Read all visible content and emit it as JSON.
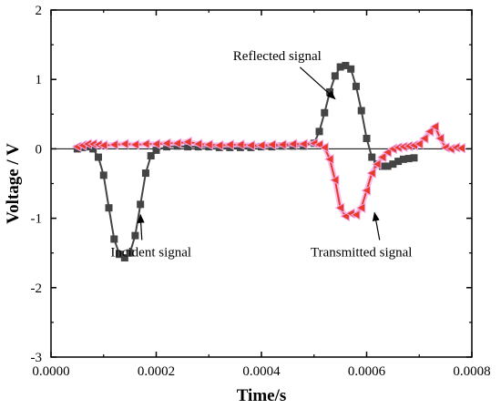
{
  "chart_data": {
    "type": "line",
    "xlabel": "Time/s",
    "ylabel": "Voltage / V",
    "xlim": [
      0.0,
      0.0008
    ],
    "ylim": [
      -3,
      2
    ],
    "x_ticks": [
      "0.0000",
      "0.0002",
      "0.0004",
      "0.0006",
      "0.0008"
    ],
    "y_ticks": [
      "-3",
      "-2",
      "-1",
      "0",
      "1",
      "2"
    ],
    "grid": false,
    "zero_line": true,
    "colors": {
      "incident_reflected": "#444444",
      "transmitted": "#e8392b",
      "transmitted_glow": "#f2a6e6"
    },
    "series": [
      {
        "marker": "square",
        "x": [
          5e-05,
          6e-05,
          7e-05,
          8e-05,
          9e-05,
          0.0001,
          0.00011,
          0.00012,
          0.00013,
          0.00014,
          0.00015,
          0.00016,
          0.00017,
          0.00018,
          0.00019,
          0.0002,
          0.00022,
          0.00024,
          0.00026,
          0.00028,
          0.0003,
          0.00032,
          0.00034,
          0.00036,
          0.00038,
          0.0004,
          0.00042,
          0.00044,
          0.00046,
          0.00048,
          0.0005,
          0.00051,
          0.00052,
          0.00053,
          0.00054,
          0.00055,
          0.00056,
          0.00057,
          0.00058,
          0.00059,
          0.0006,
          0.00061,
          0.00062,
          0.00063,
          0.00064,
          0.00065,
          0.00066,
          0.00067,
          0.00068,
          0.00069
        ],
        "y": [
          0.0,
          0.02,
          0.03,
          0.0,
          -0.12,
          -0.38,
          -0.85,
          -1.3,
          -1.52,
          -1.57,
          -1.5,
          -1.25,
          -0.8,
          -0.35,
          -0.1,
          -0.02,
          0.03,
          0.04,
          0.03,
          0.03,
          0.03,
          0.02,
          0.02,
          0.02,
          0.02,
          0.03,
          0.03,
          0.04,
          0.04,
          0.04,
          0.08,
          0.25,
          0.52,
          0.82,
          1.05,
          1.18,
          1.2,
          1.15,
          0.9,
          0.55,
          0.15,
          -0.12,
          -0.22,
          -0.25,
          -0.25,
          -0.22,
          -0.18,
          -0.15,
          -0.14,
          -0.13
        ]
      },
      {
        "marker": "triangle-left",
        "x": [
          5e-05,
          6e-05,
          7e-05,
          8e-05,
          9e-05,
          0.0001,
          0.00012,
          0.00014,
          0.00016,
          0.00018,
          0.0002,
          0.00022,
          0.00024,
          0.00026,
          0.00028,
          0.0003,
          0.00032,
          0.00034,
          0.00036,
          0.00038,
          0.0004,
          0.00042,
          0.00044,
          0.00046,
          0.00048,
          0.0005,
          0.00051,
          0.00052,
          0.00053,
          0.00054,
          0.00055,
          0.00056,
          0.00057,
          0.00058,
          0.00059,
          0.0006,
          0.00061,
          0.00062,
          0.00063,
          0.00064,
          0.00065,
          0.00066,
          0.00067,
          0.00068,
          0.00069,
          0.0007,
          0.00071,
          0.00072,
          0.00073,
          0.00074,
          0.00075,
          0.00076,
          0.00077,
          0.00078
        ],
        "y": [
          0.03,
          0.05,
          0.07,
          0.07,
          0.06,
          0.05,
          0.06,
          0.07,
          0.06,
          0.07,
          0.07,
          0.08,
          0.08,
          0.1,
          0.07,
          0.06,
          0.05,
          0.06,
          0.06,
          0.05,
          0.05,
          0.06,
          0.06,
          0.07,
          0.07,
          0.08,
          0.06,
          0.02,
          -0.15,
          -0.45,
          -0.85,
          -0.97,
          -0.93,
          -0.95,
          -0.85,
          -0.6,
          -0.35,
          -0.22,
          -0.12,
          -0.05,
          0.0,
          0.02,
          0.03,
          0.04,
          0.05,
          0.07,
          0.15,
          0.25,
          0.32,
          0.15,
          0.02,
          0.0,
          0.02,
          0.01
        ]
      }
    ],
    "annotations": [
      {
        "text": "Incident signal",
        "x": 0.00019,
        "y": -1.55,
        "arrow_to": [
          0.00017,
          -0.95
        ]
      },
      {
        "text": "Reflected signal",
        "x": 0.00043,
        "y": 1.28,
        "arrow_to": [
          0.00054,
          0.72
        ]
      },
      {
        "text": "Transmitted signal",
        "x": 0.00059,
        "y": -1.55,
        "arrow_to": [
          0.000615,
          -0.92
        ]
      }
    ]
  }
}
